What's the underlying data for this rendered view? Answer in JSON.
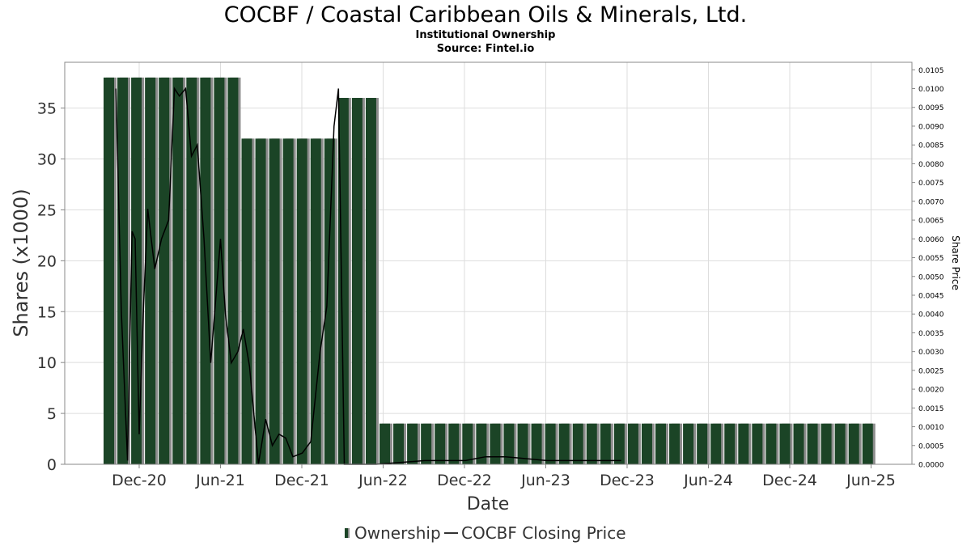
{
  "chart_data": {
    "type": "bar",
    "title": "COCBF / Coastal Caribbean Oils & Minerals, Ltd.",
    "subtitle": "Institutional Ownership",
    "source": "Source: Fintel.io",
    "xlabel": "Date",
    "ylabel": "Shares (x1000)",
    "y2label": "Share Price",
    "ylim": [
      0,
      39.5
    ],
    "y2lim": [
      0,
      0.0107
    ],
    "yticks": [
      0,
      5,
      10,
      15,
      20,
      25,
      30,
      35
    ],
    "y2ticks": [
      "0.0000",
      "0.0005",
      "0.0010",
      "0.0015",
      "0.0020",
      "0.0025",
      "0.0030",
      "0.0035",
      "0.0040",
      "0.0045",
      "0.0050",
      "0.0055",
      "0.0060",
      "0.0065",
      "0.0070",
      "0.0075",
      "0.0080",
      "0.0085",
      "0.0090",
      "0.0095",
      "0.0100",
      "0.0105"
    ],
    "xticks": [
      "Dec-20",
      "Jun-21",
      "Dec-21",
      "Jun-22",
      "Dec-22",
      "Jun-23",
      "Dec-23",
      "Jun-24",
      "Dec-24",
      "Jun-25"
    ],
    "grid": true,
    "legend_position": "bottom",
    "colors": {
      "bar": "#1b4426",
      "bar_shadow": "#8c8c8c",
      "price_line": "#000000",
      "grid": "#dddddd"
    },
    "series": [
      {
        "name": "Ownership",
        "values": [
          38,
          38,
          38,
          38,
          38,
          38,
          38,
          38,
          38,
          38,
          32,
          32,
          32,
          32,
          32,
          32,
          32,
          36,
          36,
          36,
          4,
          4,
          4,
          4,
          4,
          4,
          4,
          4,
          4,
          4,
          4,
          4,
          4,
          4,
          4,
          4,
          4,
          4,
          4,
          4,
          4,
          4,
          4,
          4,
          4,
          4,
          4,
          4,
          4,
          4,
          4,
          4,
          4,
          4,
          4,
          4
        ]
      },
      {
        "name": "COCBF Closing Price",
        "points": [
          [
            "2020-10-10",
            0.01
          ],
          [
            "2020-10-22",
            0.0041
          ],
          [
            "2020-11-05",
            0.0001
          ],
          [
            "2020-11-15",
            0.0062
          ],
          [
            "2020-11-22",
            0.006
          ],
          [
            "2020-12-01",
            0.0008
          ],
          [
            "2020-12-10",
            0.004
          ],
          [
            "2020-12-20",
            0.0068
          ],
          [
            "2021-01-05",
            0.0052
          ],
          [
            "2021-01-20",
            0.006
          ],
          [
            "2021-02-05",
            0.0065
          ],
          [
            "2021-02-18",
            0.01
          ],
          [
            "2021-03-01",
            0.0098
          ],
          [
            "2021-03-15",
            0.01
          ],
          [
            "2021-03-28",
            0.0082
          ],
          [
            "2021-04-10",
            0.0085
          ],
          [
            "2021-04-25",
            0.006
          ],
          [
            "2021-05-10",
            0.0027
          ],
          [
            "2021-05-20",
            0.0042
          ],
          [
            "2021-06-01",
            0.006
          ],
          [
            "2021-06-12",
            0.004
          ],
          [
            "2021-06-25",
            0.0027
          ],
          [
            "2021-07-10",
            0.003
          ],
          [
            "2021-07-22",
            0.0036
          ],
          [
            "2021-08-05",
            0.0026
          ],
          [
            "2021-08-15",
            0.0013
          ],
          [
            "2021-08-25",
            0.0
          ],
          [
            "2021-09-10",
            0.0012
          ],
          [
            "2021-09-25",
            0.0005
          ],
          [
            "2021-10-10",
            0.0008
          ],
          [
            "2021-10-25",
            0.0007
          ],
          [
            "2021-11-10",
            0.0002
          ],
          [
            "2021-12-01",
            0.0003
          ],
          [
            "2021-12-20",
            0.0006
          ],
          [
            "2022-01-10",
            0.003
          ],
          [
            "2022-01-25",
            0.0042
          ],
          [
            "2022-02-10",
            0.009
          ],
          [
            "2022-02-20",
            0.01
          ],
          [
            "2022-03-05",
            0.0
          ],
          [
            "2022-05-15",
            0.0
          ],
          [
            "2022-09-01",
            0.0001
          ],
          [
            "2022-12-01",
            0.0001
          ],
          [
            "2023-01-15",
            0.0002
          ],
          [
            "2023-03-01",
            0.0002
          ],
          [
            "2023-06-01",
            0.0001
          ],
          [
            "2023-09-01",
            0.0001
          ],
          [
            "2023-11-15",
            0.0001
          ]
        ]
      }
    ]
  }
}
